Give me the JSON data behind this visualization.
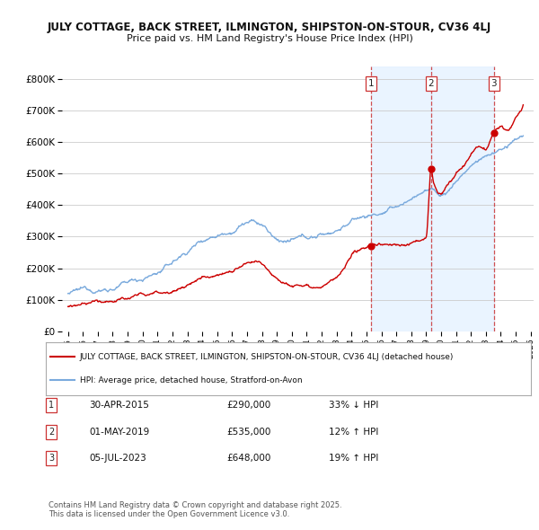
{
  "title_line1": "JULY COTTAGE, BACK STREET, ILMINGTON, SHIPSTON-ON-STOUR, CV36 4LJ",
  "title_line2": "Price paid vs. HM Land Registry's House Price Index (HPI)",
  "background_color": "#ffffff",
  "grid_color": "#cccccc",
  "sale_color": "#cc0000",
  "hpi_color": "#7aaadd",
  "shade_color": "#ddeeff",
  "sale_label": "JULY COTTAGE, BACK STREET, ILMINGTON, SHIPSTON-ON-STOUR, CV36 4LJ (detached house)",
  "hpi_label": "HPI: Average price, detached house, Stratford-on-Avon",
  "transactions": [
    {
      "num": 1,
      "date": "30-APR-2015",
      "price": 290000,
      "pct": "33%",
      "dir": "↓",
      "x_year": 2015.33
    },
    {
      "num": 2,
      "date": "01-MAY-2019",
      "price": 535000,
      "pct": "12%",
      "dir": "↑",
      "x_year": 2019.33
    },
    {
      "num": 3,
      "date": "05-JUL-2023",
      "price": 648000,
      "pct": "19%",
      "dir": "↑",
      "x_year": 2023.54
    }
  ],
  "footer": "Contains HM Land Registry data © Crown copyright and database right 2025.\nThis data is licensed under the Open Government Licence v3.0.",
  "ylim": [
    0,
    840000
  ],
  "xlim_start": 1994.6,
  "xlim_end": 2026.2,
  "yticks": [
    0,
    100000,
    200000,
    300000,
    400000,
    500000,
    600000,
    700000,
    800000
  ],
  "ytick_labels": [
    "£0",
    "£100K",
    "£200K",
    "£300K",
    "£400K",
    "£500K",
    "£600K",
    "£700K",
    "£800K"
  ],
  "xticks": [
    1995,
    1996,
    1997,
    1998,
    1999,
    2000,
    2001,
    2002,
    2003,
    2004,
    2005,
    2006,
    2007,
    2008,
    2009,
    2010,
    2011,
    2012,
    2013,
    2014,
    2015,
    2016,
    2017,
    2018,
    2019,
    2020,
    2021,
    2022,
    2023,
    2024,
    2025,
    2026
  ]
}
